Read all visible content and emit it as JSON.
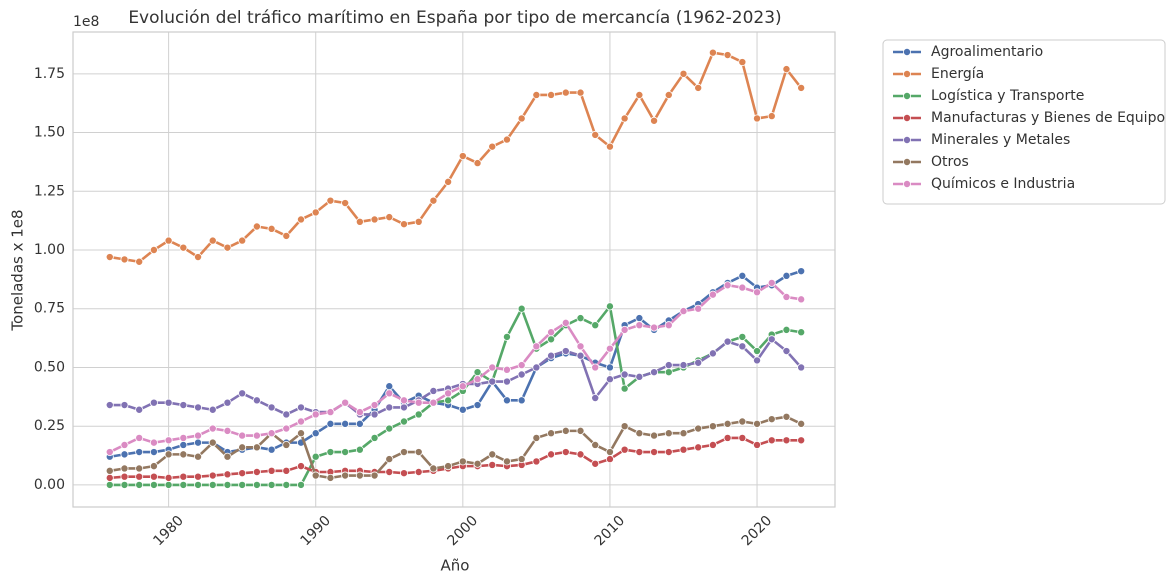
{
  "chart_data": {
    "type": "line",
    "title": "Evolución del tráfico marítimo en España por tipo de mercancía (1962-2023)",
    "x_label": "Año",
    "y_label": "Toneladas x 1e8",
    "y_offset_label": "1e8",
    "x": [
      1976,
      1977,
      1978,
      1979,
      1980,
      1981,
      1982,
      1983,
      1984,
      1985,
      1986,
      1987,
      1988,
      1989,
      1990,
      1991,
      1992,
      1993,
      1994,
      1995,
      1996,
      1997,
      1998,
      1999,
      2000,
      2001,
      2002,
      2003,
      2004,
      2005,
      2006,
      2007,
      2008,
      2009,
      2010,
      2011,
      2012,
      2013,
      2014,
      2015,
      2016,
      2017,
      2018,
      2019,
      2020,
      2021,
      2022,
      2023
    ],
    "xlim": [
      1973.5,
      2025.3
    ],
    "xticks": [
      1980,
      1990,
      2000,
      2010,
      2020
    ],
    "ylim": [
      -0.094,
      1.928
    ],
    "yticks": [
      {
        "value": 0,
        "label": "0.00"
      },
      0.25,
      {
        "value": 0.5,
        "label": "0.50"
      },
      0.75,
      {
        "value": 1,
        "label": "1.00"
      },
      1.25,
      {
        "value": 1.5,
        "label": "1.50"
      },
      1.75
    ],
    "grid": true,
    "legend_position": "outside-right",
    "series": [
      {
        "name": "Agroalimentario",
        "color": "#4c72b0",
        "values": [
          0.12,
          0.13,
          0.14,
          0.14,
          0.15,
          0.17,
          0.18,
          0.18,
          0.14,
          0.15,
          0.16,
          0.15,
          0.18,
          0.18,
          0.22,
          0.26,
          0.26,
          0.26,
          0.32,
          0.42,
          0.35,
          0.38,
          0.35,
          0.34,
          0.32,
          0.34,
          0.44,
          0.36,
          0.36,
          0.5,
          0.54,
          0.56,
          0.55,
          0.52,
          0.5,
          0.68,
          0.71,
          0.66,
          0.7,
          0.74,
          0.77,
          0.82,
          0.86,
          0.89,
          0.84,
          0.85,
          0.89,
          0.91
        ]
      },
      {
        "name": "Energía",
        "color": "#dd8452",
        "values": [
          0.97,
          0.96,
          0.95,
          1.0,
          1.04,
          1.01,
          0.97,
          1.04,
          1.01,
          1.04,
          1.1,
          1.09,
          1.06,
          1.13,
          1.16,
          1.21,
          1.2,
          1.12,
          1.13,
          1.14,
          1.11,
          1.12,
          1.21,
          1.29,
          1.4,
          1.37,
          1.44,
          1.47,
          1.56,
          1.66,
          1.66,
          1.67,
          1.67,
          1.49,
          1.44,
          1.56,
          1.66,
          1.55,
          1.66,
          1.75,
          1.69,
          1.84,
          1.83,
          1.8,
          1.56,
          1.57,
          1.77,
          1.69
        ]
      },
      {
        "name": "Logística y Transporte",
        "color": "#55a868",
        "values": [
          0,
          0,
          0,
          0,
          0,
          0,
          0,
          0,
          0,
          0,
          0,
          0,
          0,
          0,
          0.12,
          0.14,
          0.14,
          0.15,
          0.2,
          0.24,
          0.27,
          0.3,
          0.35,
          0.36,
          0.4,
          0.48,
          0.44,
          0.63,
          0.75,
          0.58,
          0.62,
          0.68,
          0.71,
          0.68,
          0.76,
          0.41,
          0.46,
          0.48,
          0.48,
          0.5,
          0.53,
          0.56,
          0.61,
          0.63,
          0.57,
          0.64,
          0.66,
          0.65
        ]
      },
      {
        "name": "Manufacturas y Bienes de Equipo",
        "color": "#c44e52",
        "values": [
          0.03,
          0.035,
          0.035,
          0.035,
          0.03,
          0.035,
          0.035,
          0.04,
          0.045,
          0.05,
          0.055,
          0.06,
          0.06,
          0.08,
          0.055,
          0.055,
          0.06,
          0.06,
          0.055,
          0.055,
          0.05,
          0.055,
          0.06,
          0.07,
          0.08,
          0.08,
          0.085,
          0.08,
          0.085,
          0.1,
          0.13,
          0.14,
          0.13,
          0.09,
          0.11,
          0.15,
          0.14,
          0.14,
          0.14,
          0.15,
          0.16,
          0.17,
          0.2,
          0.2,
          0.17,
          0.19,
          0.19,
          0.19
        ]
      },
      {
        "name": "Minerales y Metales",
        "color": "#8172b3",
        "values": [
          0.34,
          0.34,
          0.32,
          0.35,
          0.35,
          0.34,
          0.33,
          0.32,
          0.35,
          0.39,
          0.36,
          0.33,
          0.3,
          0.33,
          0.31,
          0.31,
          0.35,
          0.3,
          0.3,
          0.33,
          0.33,
          0.36,
          0.4,
          0.41,
          0.43,
          0.43,
          0.44,
          0.44,
          0.47,
          0.5,
          0.55,
          0.57,
          0.55,
          0.37,
          0.45,
          0.47,
          0.46,
          0.48,
          0.51,
          0.51,
          0.52,
          0.56,
          0.61,
          0.59,
          0.53,
          0.62,
          0.57,
          0.5
        ]
      },
      {
        "name": "Otros",
        "color": "#937860",
        "values": [
          0.06,
          0.07,
          0.07,
          0.08,
          0.13,
          0.13,
          0.12,
          0.18,
          0.12,
          0.16,
          0.16,
          0.22,
          0.17,
          0.22,
          0.04,
          0.03,
          0.04,
          0.04,
          0.04,
          0.11,
          0.14,
          0.14,
          0.07,
          0.08,
          0.1,
          0.09,
          0.13,
          0.1,
          0.11,
          0.2,
          0.22,
          0.23,
          0.23,
          0.17,
          0.14,
          0.25,
          0.22,
          0.21,
          0.22,
          0.22,
          0.24,
          0.25,
          0.26,
          0.27,
          0.26,
          0.28,
          0.29,
          0.26
        ]
      },
      {
        "name": "Químicos e Industria",
        "color": "#da8bc3",
        "values": [
          0.14,
          0.17,
          0.2,
          0.18,
          0.19,
          0.2,
          0.21,
          0.24,
          0.23,
          0.21,
          0.21,
          0.22,
          0.24,
          0.27,
          0.3,
          0.31,
          0.35,
          0.31,
          0.34,
          0.39,
          0.36,
          0.35,
          0.35,
          0.39,
          0.42,
          0.45,
          0.5,
          0.49,
          0.51,
          0.59,
          0.65,
          0.69,
          0.59,
          0.5,
          0.58,
          0.66,
          0.68,
          0.67,
          0.68,
          0.74,
          0.75,
          0.81,
          0.85,
          0.84,
          0.82,
          0.86,
          0.8,
          0.79
        ]
      }
    ]
  }
}
